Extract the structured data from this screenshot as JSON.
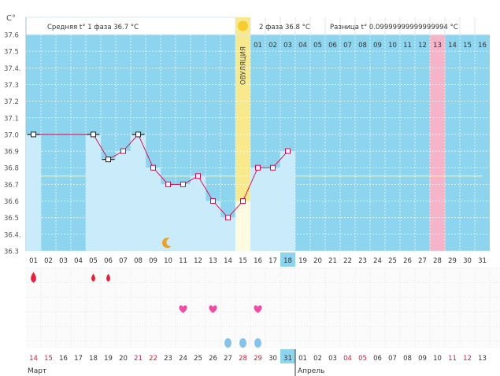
{
  "chart_data": {
    "type": "line",
    "y_unit": "С°",
    "y_ticks": [
      "37.6",
      "37.5",
      "37.4.",
      "37.3",
      "37.2",
      "37.1",
      "37.0",
      "36.9",
      "36.8",
      "36.7",
      "36.6",
      "36.5",
      "36.4.",
      "36.3"
    ],
    "ylim": [
      36.3,
      37.6
    ],
    "phase1_label": "Средняя t° 1 фаза 36.7 °С",
    "phase2_label": "2 фаза 36.8 °С",
    "diff_label": "Разница t° 0.09999999999999994 °С",
    "ovulation_label": "ОВУЛЯЦИЯ",
    "ovulation_day": 15,
    "cover_line": 36.75,
    "highlight_day": 28,
    "today_day": 18,
    "cycle_days": [
      "01",
      "02",
      "03",
      "04",
      "05",
      "06",
      "07",
      "08",
      "09",
      "10",
      "11",
      "12",
      "13",
      "14",
      "15",
      "16",
      "17",
      "18",
      "19",
      "20",
      "21",
      "22",
      "23",
      "24",
      "25",
      "26",
      "27",
      "28",
      "29",
      "30",
      "31"
    ],
    "phase2_days": [
      "01",
      "02",
      "03",
      "04",
      "05",
      "06",
      "07",
      "08",
      "09",
      "10",
      "11",
      "12",
      "13",
      "14",
      "15",
      "16"
    ],
    "temperatures": [
      {
        "day": 1,
        "value": 37.0
      },
      {
        "day": 5,
        "value": 37.0
      },
      {
        "day": 6,
        "value": 36.85
      },
      {
        "day": 7,
        "value": 36.9
      },
      {
        "day": 8,
        "value": 37.0
      },
      {
        "day": 9,
        "value": 36.8
      },
      {
        "day": 10,
        "value": 36.7
      },
      {
        "day": 11,
        "value": 36.7
      },
      {
        "day": 12,
        "value": 36.75
      },
      {
        "day": 13,
        "value": 36.6
      },
      {
        "day": 14,
        "value": 36.5
      },
      {
        "day": 15,
        "value": 36.6
      },
      {
        "day": 16,
        "value": 36.8
      },
      {
        "day": 17,
        "value": 36.8
      },
      {
        "day": 18,
        "value": 36.9
      }
    ],
    "markers": {
      "moon_day": 10,
      "sun_column": 15,
      "bleeding_days": [
        1,
        5,
        6
      ],
      "heart_days": [
        11,
        13,
        16
      ],
      "drop_days": [
        14,
        15,
        16
      ]
    },
    "calendar_dates": [
      "14",
      "15",
      "16",
      "17",
      "18",
      "19",
      "20",
      "21",
      "22",
      "23",
      "24",
      "25",
      "26",
      "27",
      "28",
      "29",
      "30",
      "31",
      "01",
      "02",
      "03",
      "04",
      "05",
      "06",
      "07",
      "08",
      "09",
      "10",
      "11",
      "12",
      "13"
    ],
    "weekend_dates": [
      "14",
      "15",
      "21",
      "22",
      "28",
      "29",
      "04",
      "05",
      "11",
      "12"
    ],
    "month_start": "Март",
    "month_next": "Апрель",
    "colors": {
      "sky": "#8dd4ee",
      "bar": "#c9ebfa",
      "line": "#e0004e",
      "ovulation": "#f7e98c",
      "highlight": "#f6b4c9",
      "weekend": "#cc1f3c",
      "today": "#8dd4ee",
      "cover": "#fff2a8"
    }
  }
}
